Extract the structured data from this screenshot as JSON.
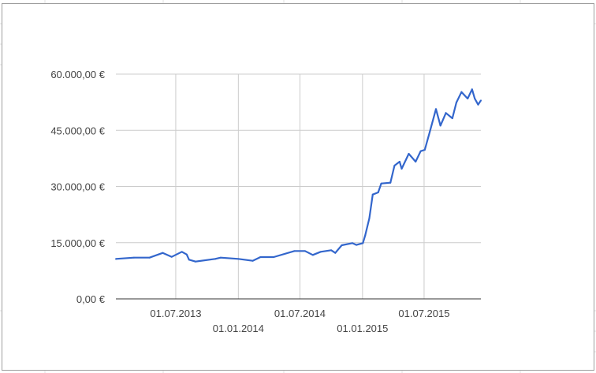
{
  "chart_data": {
    "type": "line",
    "title": "",
    "xlabel": "",
    "ylabel": "",
    "ylim": [
      0,
      60000
    ],
    "xlim": [
      "2013-01-06",
      "2015-12-15"
    ],
    "grid": true,
    "legend": "none",
    "line_color": "#3366cc",
    "y_ticks": [
      {
        "value": 0,
        "label": "0,00 €"
      },
      {
        "value": 15000,
        "label": "15.000,00 €"
      },
      {
        "value": 30000,
        "label": "30.000,00 €"
      },
      {
        "value": 45000,
        "label": "45.000,00 €"
      },
      {
        "value": 60000,
        "label": "60.000,00 €"
      }
    ],
    "x_ticks": [
      {
        "date": "2013-07-01",
        "label": "01.07.2013"
      },
      {
        "date": "2014-01-01",
        "label": "01.01.2014"
      },
      {
        "date": "2014-07-01",
        "label": "01.07.2014"
      },
      {
        "date": "2015-01-01",
        "label": "01.01.2015"
      },
      {
        "date": "2015-07-01",
        "label": "01.07.2015"
      }
    ],
    "series": [
      {
        "points": [
          [
            "2013-01-06",
            10670
          ],
          [
            "2013-02-28",
            11010
          ],
          [
            "2013-04-15",
            11010
          ],
          [
            "2013-05-24",
            12270
          ],
          [
            "2013-06-19",
            11220
          ],
          [
            "2013-07-19",
            12560
          ],
          [
            "2013-08-02",
            11860
          ],
          [
            "2013-08-09",
            10460
          ],
          [
            "2013-08-28",
            9960
          ],
          [
            "2013-10-25",
            10670
          ],
          [
            "2013-11-10",
            11010
          ],
          [
            "2014-01-01",
            10670
          ],
          [
            "2014-02-12",
            10170
          ],
          [
            "2014-03-07",
            11160
          ],
          [
            "2014-04-15",
            11160
          ],
          [
            "2014-06-15",
            12770
          ],
          [
            "2014-07-16",
            12770
          ],
          [
            "2014-08-08",
            11720
          ],
          [
            "2014-08-31",
            12560
          ],
          [
            "2014-10-01",
            12980
          ],
          [
            "2014-10-13",
            12270
          ],
          [
            "2014-11-01",
            14320
          ],
          [
            "2014-12-02",
            14880
          ],
          [
            "2014-12-14",
            14390
          ],
          [
            "2015-01-02",
            14880
          ],
          [
            "2015-01-09",
            16990
          ],
          [
            "2015-01-21",
            21540
          ],
          [
            "2015-01-31",
            27860
          ],
          [
            "2015-02-16",
            28420
          ],
          [
            "2015-02-25",
            30800
          ],
          [
            "2015-03-24",
            31010
          ],
          [
            "2015-04-05",
            35580
          ],
          [
            "2015-04-20",
            36630
          ],
          [
            "2015-04-26",
            34740
          ],
          [
            "2015-05-17",
            38740
          ],
          [
            "2015-06-06",
            36630
          ],
          [
            "2015-06-21",
            39440
          ],
          [
            "2015-07-03",
            39790
          ],
          [
            "2015-07-18",
            44700
          ],
          [
            "2015-08-05",
            50670
          ],
          [
            "2015-08-18",
            46250
          ],
          [
            "2015-09-03",
            49620
          ],
          [
            "2015-09-22",
            48210
          ],
          [
            "2015-10-04",
            52420
          ],
          [
            "2015-10-19",
            55230
          ],
          [
            "2015-11-06",
            53470
          ],
          [
            "2015-11-19",
            55930
          ],
          [
            "2015-11-27",
            53470
          ],
          [
            "2015-12-07",
            51860
          ],
          [
            "2015-12-15",
            52980
          ]
        ]
      }
    ]
  }
}
